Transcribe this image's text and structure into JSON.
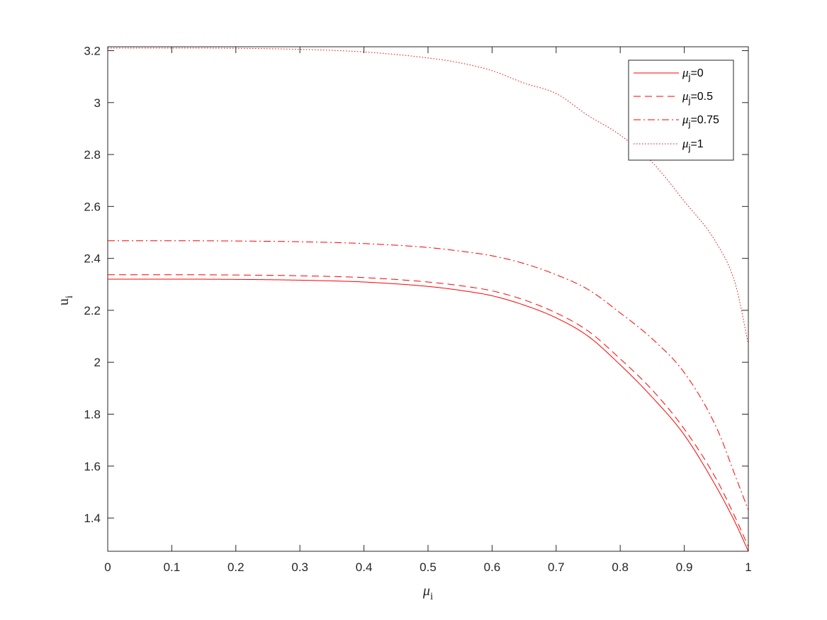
{
  "chart_data": {
    "type": "line",
    "title": "",
    "xlabel": {
      "base": "μ",
      "sub": "i"
    },
    "ylabel": {
      "base": "u",
      "sub": "i"
    },
    "xlim": [
      0,
      1
    ],
    "ylim": [
      1.272,
      3.215
    ],
    "xticks": [
      0,
      0.1,
      0.2,
      0.3,
      0.4,
      0.5,
      0.6,
      0.7,
      0.8,
      0.9,
      1
    ],
    "xtick_labels": [
      "0",
      "0.1",
      "0.2",
      "0.3",
      "0.4",
      "0.5",
      "0.6",
      "0.7",
      "0.8",
      "0.9",
      "1"
    ],
    "yticks": [
      1.4,
      1.6,
      1.8,
      2,
      2.2,
      2.4,
      2.6,
      2.8,
      3,
      3.2
    ],
    "ytick_labels": [
      "1.4",
      "1.6",
      "1.8",
      "2",
      "2.2",
      "2.4",
      "2.6",
      "2.8",
      "3",
      "3.2"
    ],
    "grid": false,
    "legend_position": "top-right",
    "line_color": "#ff0000",
    "x": [
      0,
      0.1,
      0.2,
      0.3,
      0.4,
      0.5,
      0.55,
      0.6,
      0.65,
      0.7,
      0.75,
      0.8,
      0.85,
      0.9,
      0.95,
      0.98,
      1
    ],
    "series": [
      {
        "legend_base": "μ",
        "legend_sub": "j",
        "legend_value": "=0",
        "style": "solid",
        "values": [
          2.32,
          2.32,
          2.319,
          2.316,
          2.309,
          2.292,
          2.277,
          2.256,
          2.22,
          2.171,
          2.1,
          1.99,
          1.865,
          1.72,
          1.52,
          1.38,
          1.272
        ]
      },
      {
        "legend_base": "μ",
        "legend_sub": "j",
        "legend_value": "=0.5",
        "style": "dashed",
        "values": [
          2.337,
          2.337,
          2.336,
          2.333,
          2.326,
          2.309,
          2.295,
          2.275,
          2.24,
          2.19,
          2.12,
          2.013,
          1.893,
          1.743,
          1.55,
          1.4,
          1.29
        ]
      },
      {
        "legend_base": "μ",
        "legend_sub": "j",
        "legend_value": "=0.75",
        "style": "dashdot",
        "values": [
          2.468,
          2.468,
          2.467,
          2.464,
          2.457,
          2.442,
          2.428,
          2.41,
          2.38,
          2.337,
          2.28,
          2.19,
          2.09,
          1.96,
          1.75,
          1.56,
          1.43
        ]
      },
      {
        "legend_base": "μ",
        "legend_sub": "j",
        "legend_value": "=1",
        "style": "dotted",
        "values": [
          3.21,
          3.21,
          3.209,
          3.205,
          3.195,
          3.172,
          3.153,
          3.123,
          3.075,
          3.035,
          2.95,
          2.875,
          2.77,
          2.62,
          2.46,
          2.3,
          2.07
        ]
      }
    ]
  }
}
